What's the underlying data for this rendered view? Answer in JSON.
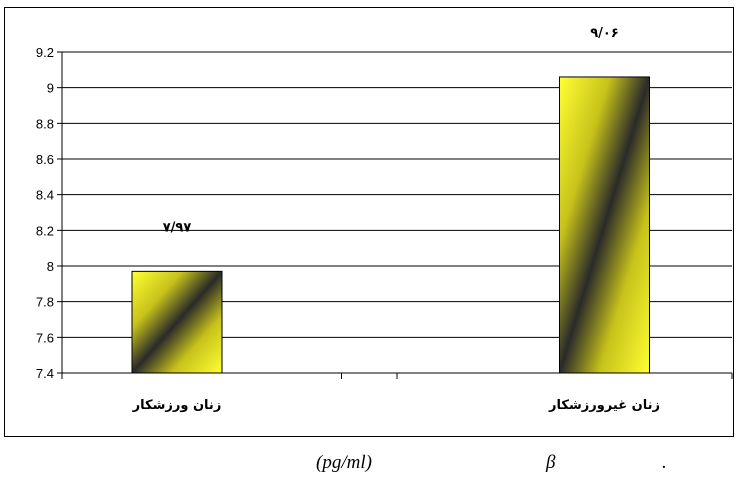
{
  "chart_data": {
    "type": "bar",
    "categories": [
      "زنان ورزشکار",
      "زنان غیرورزشکار"
    ],
    "values": [
      7.97,
      9.06
    ],
    "data_labels": [
      "۷/۹۷",
      "۹/۰۶"
    ],
    "ylim": [
      7.4,
      9.2
    ],
    "yticks": [
      "7.4",
      "7.6",
      "7.8",
      "8",
      "8.2",
      "8.4",
      "8.6",
      "8.8",
      "9",
      "9.2"
    ],
    "grid": true,
    "legend": "none",
    "bar_colors": [
      "#ffff33",
      "#1a1a1a"
    ]
  },
  "caption": {
    "unit": "(pg/ml)",
    "symbol": "β",
    "dot": "."
  }
}
